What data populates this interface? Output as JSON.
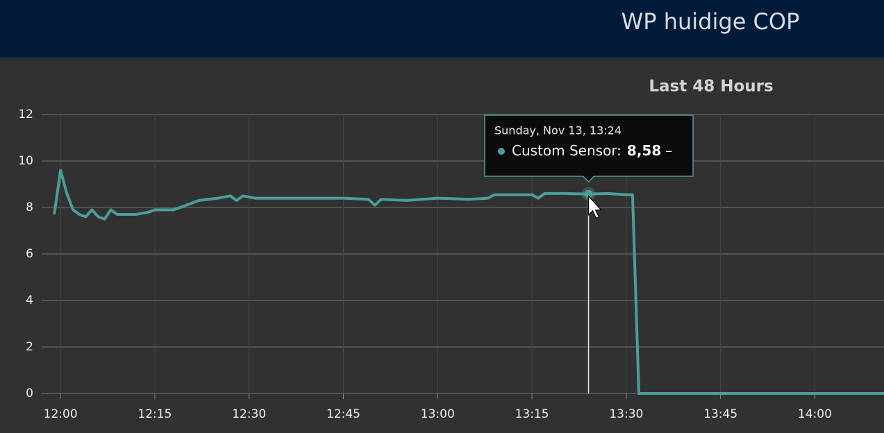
{
  "header": {
    "title": "WP huidige COP"
  },
  "chart_data": {
    "type": "line",
    "subtitle": "Last 48 Hours",
    "x": [
      "11:59",
      "12:00",
      "12:01",
      "12:02",
      "12:03",
      "12:04",
      "12:05",
      "12:06",
      "12:07",
      "12:08",
      "12:09",
      "12:10",
      "12:12",
      "12:14",
      "12:15",
      "12:18",
      "12:20",
      "12:22",
      "12:25",
      "12:27",
      "12:28",
      "12:29",
      "12:31",
      "12:35",
      "12:40",
      "12:45",
      "12:49",
      "12:50",
      "12:51",
      "12:55",
      "13:00",
      "13:05",
      "13:08",
      "13:09",
      "13:15",
      "13:16",
      "13:17",
      "13:20",
      "13:24",
      "13:27",
      "13:30",
      "13:31",
      "13:32",
      "14:11"
    ],
    "series": [
      {
        "name": "Custom Sensor",
        "color": "#4a9e9a",
        "values": [
          7.7,
          9.6,
          8.6,
          7.9,
          7.7,
          7.6,
          7.9,
          7.6,
          7.5,
          7.9,
          7.7,
          7.7,
          7.7,
          7.8,
          7.9,
          7.9,
          8.1,
          8.3,
          8.4,
          8.5,
          8.3,
          8.5,
          8.4,
          8.4,
          8.4,
          8.4,
          8.35,
          8.1,
          8.35,
          8.3,
          8.4,
          8.35,
          8.4,
          8.55,
          8.55,
          8.4,
          8.6,
          8.6,
          8.58,
          8.6,
          8.55,
          8.55,
          0,
          0
        ]
      }
    ],
    "xlim": [
      "11:57",
      "14:11"
    ],
    "xticks": [
      "12:00",
      "12:15",
      "12:30",
      "12:45",
      "13:00",
      "13:15",
      "13:30",
      "13:45",
      "14:00"
    ],
    "ylim": [
      0,
      12
    ],
    "yticks": [
      0,
      2,
      4,
      6,
      8,
      10,
      12
    ],
    "grid": true,
    "tooltip": {
      "x": "13:24",
      "title": "Sunday, Nov 13, 13:24",
      "label": "Custom Sensor:",
      "value": 8.58,
      "value_label": "8,58",
      "suffix": "–"
    }
  }
}
